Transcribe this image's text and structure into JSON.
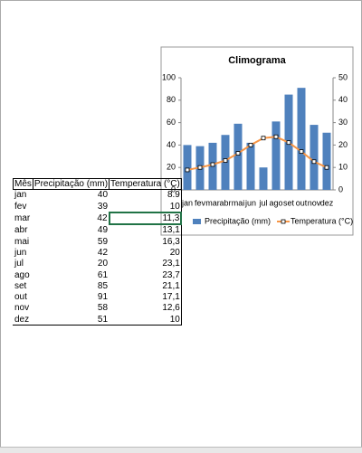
{
  "chart_data": {
    "type": "bar-line",
    "title": "Climograma",
    "categories": [
      "jan",
      "fev",
      "mar",
      "abr",
      "mai",
      "jun",
      "jul",
      "ago",
      "set",
      "out",
      "nov",
      "dez"
    ],
    "series": [
      {
        "name": "Precipitação (mm)",
        "type": "bar",
        "color": "#4f81bd",
        "values": [
          40,
          39,
          42,
          49,
          59,
          42,
          20,
          61,
          85,
          91,
          58,
          51
        ]
      },
      {
        "name": "Temperatura (°C)",
        "type": "line",
        "axis": "y2",
        "color": "#f79646",
        "values": [
          8.9,
          10,
          11.3,
          13.1,
          16.3,
          20,
          23.1,
          23.7,
          21.1,
          17.1,
          12.6,
          10
        ]
      }
    ],
    "ylim": [
      0,
      100
    ],
    "yticks": [
      0,
      20,
      40,
      60,
      80,
      100
    ],
    "y2lim": [
      0,
      50
    ],
    "y2ticks": [
      0,
      10,
      20,
      30,
      40,
      50
    ],
    "grid": false,
    "legend": "bottom"
  },
  "table": {
    "header": [
      "Mês",
      "Precipitação (mm)",
      "Temperatura (°C)"
    ],
    "rows": [
      [
        "jan",
        "40",
        "8.9"
      ],
      [
        "fev",
        "39",
        "10"
      ],
      [
        "mar",
        "42",
        "11,3"
      ],
      [
        "abr",
        "49",
        "13,1"
      ],
      [
        "mai",
        "59",
        "16,3"
      ],
      [
        "jun",
        "42",
        "20"
      ],
      [
        "jul",
        "20",
        "23,1"
      ],
      [
        "ago",
        "61",
        "23,7"
      ],
      [
        "set",
        "85",
        "21,1"
      ],
      [
        "out",
        "91",
        "17,1"
      ],
      [
        "nov",
        "58",
        "12,6"
      ],
      [
        "dez",
        "51",
        "10"
      ]
    ]
  }
}
